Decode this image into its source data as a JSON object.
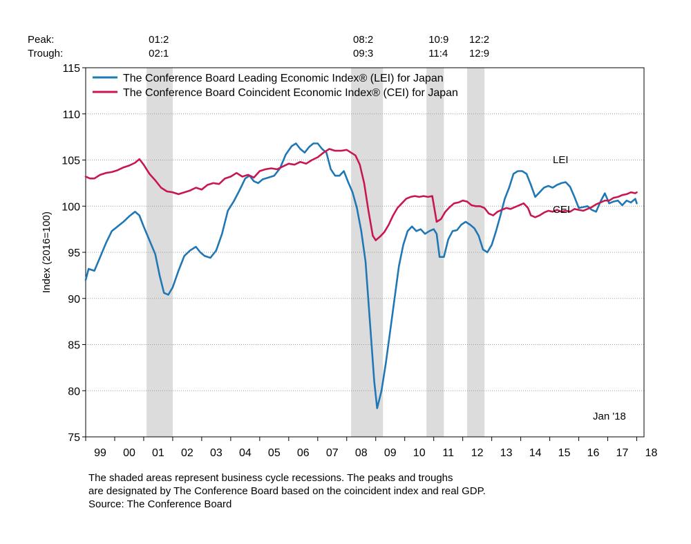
{
  "peak_label": "Peak:",
  "trough_label": "Trough:",
  "chart_data": {
    "type": "line",
    "ylabel": "Index (2016=100)",
    "ylim": [
      75,
      115
    ],
    "yticks": [
      75,
      80,
      85,
      90,
      95,
      100,
      105,
      110,
      115
    ],
    "grid": "horizontal dotted",
    "xlim": [
      1999.0,
      2018.25
    ],
    "xtick_labels": [
      "99",
      "00",
      "01",
      "02",
      "03",
      "04",
      "05",
      "06",
      "07",
      "08",
      "09",
      "10",
      "11",
      "12",
      "13",
      "14",
      "15",
      "16",
      "17",
      "18"
    ],
    "legend_position": "top-left",
    "date_note": "Jan '18",
    "series": [
      {
        "name": "The Conference Board Leading Economic Index® (LEI) for Japan",
        "label": "LEI",
        "color": "#1f77b4",
        "points": [
          [
            1999.0,
            92.0
          ],
          [
            1999.1,
            93.2
          ],
          [
            1999.3,
            93.0
          ],
          [
            1999.5,
            94.5
          ],
          [
            1999.7,
            96.0
          ],
          [
            1999.9,
            97.3
          ],
          [
            2000.1,
            97.8
          ],
          [
            2000.3,
            98.3
          ],
          [
            2000.5,
            98.9
          ],
          [
            2000.7,
            99.4
          ],
          [
            2000.85,
            99.0
          ],
          [
            2001.0,
            97.8
          ],
          [
            2001.2,
            96.3
          ],
          [
            2001.4,
            94.8
          ],
          [
            2001.55,
            92.5
          ],
          [
            2001.7,
            90.6
          ],
          [
            2001.85,
            90.4
          ],
          [
            2002.0,
            91.2
          ],
          [
            2002.2,
            93.0
          ],
          [
            2002.4,
            94.6
          ],
          [
            2002.6,
            95.2
          ],
          [
            2002.8,
            95.6
          ],
          [
            2002.95,
            95.0
          ],
          [
            2003.1,
            94.6
          ],
          [
            2003.3,
            94.4
          ],
          [
            2003.5,
            95.2
          ],
          [
            2003.7,
            97.0
          ],
          [
            2003.9,
            99.5
          ],
          [
            2004.1,
            100.5
          ],
          [
            2004.3,
            101.7
          ],
          [
            2004.5,
            103.0
          ],
          [
            2004.65,
            103.3
          ],
          [
            2004.8,
            102.7
          ],
          [
            2004.95,
            102.5
          ],
          [
            2005.1,
            102.9
          ],
          [
            2005.3,
            103.1
          ],
          [
            2005.5,
            103.3
          ],
          [
            2005.7,
            104.1
          ],
          [
            2005.9,
            105.6
          ],
          [
            2006.1,
            106.5
          ],
          [
            2006.25,
            106.8
          ],
          [
            2006.4,
            106.2
          ],
          [
            2006.55,
            105.8
          ],
          [
            2006.7,
            106.4
          ],
          [
            2006.85,
            106.8
          ],
          [
            2007.0,
            106.8
          ],
          [
            2007.15,
            106.2
          ],
          [
            2007.3,
            105.8
          ],
          [
            2007.45,
            104.0
          ],
          [
            2007.6,
            103.3
          ],
          [
            2007.75,
            103.3
          ],
          [
            2007.9,
            103.8
          ],
          [
            2008.05,
            102.6
          ],
          [
            2008.2,
            101.5
          ],
          [
            2008.35,
            99.8
          ],
          [
            2008.5,
            97.3
          ],
          [
            2008.65,
            94.0
          ],
          [
            2008.8,
            87.5
          ],
          [
            2008.95,
            81.0
          ],
          [
            2009.05,
            78.1
          ],
          [
            2009.2,
            80.0
          ],
          [
            2009.35,
            83.0
          ],
          [
            2009.5,
            86.5
          ],
          [
            2009.65,
            90.0
          ],
          [
            2009.8,
            93.5
          ],
          [
            2009.95,
            95.8
          ],
          [
            2010.1,
            97.3
          ],
          [
            2010.25,
            97.8
          ],
          [
            2010.4,
            97.3
          ],
          [
            2010.55,
            97.5
          ],
          [
            2010.7,
            97.0
          ],
          [
            2010.85,
            97.3
          ],
          [
            2011.0,
            97.5
          ],
          [
            2011.1,
            97.0
          ],
          [
            2011.2,
            94.5
          ],
          [
            2011.35,
            94.5
          ],
          [
            2011.5,
            96.4
          ],
          [
            2011.65,
            97.3
          ],
          [
            2011.8,
            97.4
          ],
          [
            2011.95,
            98.0
          ],
          [
            2012.1,
            98.3
          ],
          [
            2012.25,
            98.0
          ],
          [
            2012.4,
            97.6
          ],
          [
            2012.55,
            96.8
          ],
          [
            2012.7,
            95.3
          ],
          [
            2012.85,
            95.0
          ],
          [
            2013.0,
            95.8
          ],
          [
            2013.15,
            97.3
          ],
          [
            2013.3,
            99.0
          ],
          [
            2013.45,
            100.8
          ],
          [
            2013.6,
            102.0
          ],
          [
            2013.75,
            103.5
          ],
          [
            2013.9,
            103.8
          ],
          [
            2014.05,
            103.8
          ],
          [
            2014.2,
            103.5
          ],
          [
            2014.35,
            102.3
          ],
          [
            2014.5,
            101.0
          ],
          [
            2014.65,
            101.5
          ],
          [
            2014.8,
            102.0
          ],
          [
            2014.95,
            102.2
          ],
          [
            2015.1,
            102.0
          ],
          [
            2015.25,
            102.3
          ],
          [
            2015.4,
            102.5
          ],
          [
            2015.55,
            102.6
          ],
          [
            2015.7,
            102.1
          ],
          [
            2015.85,
            101.0
          ],
          [
            2016.0,
            99.8
          ],
          [
            2016.15,
            99.9
          ],
          [
            2016.3,
            100.0
          ],
          [
            2016.45,
            99.6
          ],
          [
            2016.6,
            99.4
          ],
          [
            2016.75,
            100.5
          ],
          [
            2016.9,
            101.4
          ],
          [
            2017.05,
            100.3
          ],
          [
            2017.2,
            100.5
          ],
          [
            2017.35,
            100.6
          ],
          [
            2017.5,
            100.1
          ],
          [
            2017.65,
            100.6
          ],
          [
            2017.8,
            100.4
          ],
          [
            2017.95,
            100.8
          ],
          [
            2018.0,
            100.3
          ]
        ]
      },
      {
        "name": "The Conference Board Coincident Economic Index® (CEI) for Japan",
        "label": "CEI",
        "color": "#c8174f",
        "points": [
          [
            1999.0,
            103.2
          ],
          [
            1999.15,
            103.0
          ],
          [
            1999.3,
            103.0
          ],
          [
            1999.5,
            103.4
          ],
          [
            1999.7,
            103.6
          ],
          [
            1999.9,
            103.7
          ],
          [
            2000.1,
            103.9
          ],
          [
            2000.3,
            104.2
          ],
          [
            2000.5,
            104.4
          ],
          [
            2000.7,
            104.7
          ],
          [
            2000.85,
            105.1
          ],
          [
            2001.0,
            104.5
          ],
          [
            2001.2,
            103.5
          ],
          [
            2001.4,
            102.8
          ],
          [
            2001.6,
            102.0
          ],
          [
            2001.8,
            101.6
          ],
          [
            2002.0,
            101.5
          ],
          [
            2002.2,
            101.3
          ],
          [
            2002.4,
            101.5
          ],
          [
            2002.6,
            101.7
          ],
          [
            2002.8,
            102.0
          ],
          [
            2003.0,
            101.8
          ],
          [
            2003.2,
            102.3
          ],
          [
            2003.4,
            102.5
          ],
          [
            2003.6,
            102.4
          ],
          [
            2003.8,
            103.0
          ],
          [
            2004.0,
            103.2
          ],
          [
            2004.2,
            103.6
          ],
          [
            2004.4,
            103.2
          ],
          [
            2004.6,
            103.4
          ],
          [
            2004.8,
            103.1
          ],
          [
            2005.0,
            103.8
          ],
          [
            2005.2,
            104.0
          ],
          [
            2005.4,
            104.1
          ],
          [
            2005.6,
            104.0
          ],
          [
            2005.8,
            104.3
          ],
          [
            2006.0,
            104.6
          ],
          [
            2006.2,
            104.5
          ],
          [
            2006.4,
            104.8
          ],
          [
            2006.6,
            104.6
          ],
          [
            2006.8,
            105.0
          ],
          [
            2007.0,
            105.3
          ],
          [
            2007.2,
            105.8
          ],
          [
            2007.4,
            106.2
          ],
          [
            2007.6,
            106.0
          ],
          [
            2007.8,
            106.0
          ],
          [
            2008.0,
            106.1
          ],
          [
            2008.15,
            105.8
          ],
          [
            2008.3,
            105.5
          ],
          [
            2008.45,
            104.5
          ],
          [
            2008.6,
            102.5
          ],
          [
            2008.75,
            99.5
          ],
          [
            2008.9,
            96.8
          ],
          [
            2009.0,
            96.3
          ],
          [
            2009.15,
            96.7
          ],
          [
            2009.3,
            97.2
          ],
          [
            2009.45,
            98.0
          ],
          [
            2009.6,
            99.0
          ],
          [
            2009.75,
            99.8
          ],
          [
            2009.9,
            100.3
          ],
          [
            2010.05,
            100.8
          ],
          [
            2010.2,
            101.0
          ],
          [
            2010.35,
            101.1
          ],
          [
            2010.5,
            101.0
          ],
          [
            2010.65,
            101.1
          ],
          [
            2010.8,
            101.0
          ],
          [
            2010.95,
            101.1
          ],
          [
            2011.1,
            98.3
          ],
          [
            2011.25,
            98.6
          ],
          [
            2011.4,
            99.4
          ],
          [
            2011.55,
            99.9
          ],
          [
            2011.7,
            100.3
          ],
          [
            2011.85,
            100.4
          ],
          [
            2012.0,
            100.6
          ],
          [
            2012.15,
            100.5
          ],
          [
            2012.3,
            100.1
          ],
          [
            2012.45,
            100.0
          ],
          [
            2012.6,
            100.0
          ],
          [
            2012.75,
            99.8
          ],
          [
            2012.9,
            99.2
          ],
          [
            2013.05,
            99.0
          ],
          [
            2013.2,
            99.4
          ],
          [
            2013.35,
            99.6
          ],
          [
            2013.5,
            99.8
          ],
          [
            2013.65,
            99.7
          ],
          [
            2013.8,
            99.9
          ],
          [
            2013.95,
            100.1
          ],
          [
            2014.1,
            100.3
          ],
          [
            2014.25,
            99.8
          ],
          [
            2014.35,
            99.0
          ],
          [
            2014.5,
            98.8
          ],
          [
            2014.65,
            99.0
          ],
          [
            2014.8,
            99.3
          ],
          [
            2014.95,
            99.5
          ],
          [
            2015.1,
            99.4
          ],
          [
            2015.25,
            99.6
          ],
          [
            2015.4,
            99.4
          ],
          [
            2015.55,
            99.5
          ],
          [
            2015.7,
            99.4
          ],
          [
            2015.85,
            99.7
          ],
          [
            2016.0,
            99.6
          ],
          [
            2016.15,
            99.5
          ],
          [
            2016.3,
            99.7
          ],
          [
            2016.45,
            99.9
          ],
          [
            2016.6,
            100.2
          ],
          [
            2016.75,
            100.4
          ],
          [
            2016.9,
            100.6
          ],
          [
            2017.05,
            100.6
          ],
          [
            2017.2,
            100.9
          ],
          [
            2017.35,
            101.0
          ],
          [
            2017.5,
            101.2
          ],
          [
            2017.65,
            101.3
          ],
          [
            2017.8,
            101.5
          ],
          [
            2017.95,
            101.4
          ],
          [
            2018.0,
            101.5
          ]
        ]
      }
    ],
    "recessions": [
      {
        "peak": "01:2",
        "trough": "02:1",
        "start": 2001.1,
        "end": 2002.0
      },
      {
        "peak": "08:2",
        "trough": "09:3",
        "start": 2008.15,
        "end": 2009.25
      },
      {
        "peak": "10:9",
        "trough": "11:4",
        "start": 2010.75,
        "end": 2011.35
      },
      {
        "peak": "12:2",
        "trough": "12:9",
        "start": 2012.15,
        "end": 2012.75
      }
    ]
  },
  "footnote": {
    "line1": "The shaded areas represent business cycle recessions. The peaks and troughs",
    "line2": "are designated by The Conference Board based on the coincident index and real GDP.",
    "line3": "Source: The Conference Board"
  }
}
